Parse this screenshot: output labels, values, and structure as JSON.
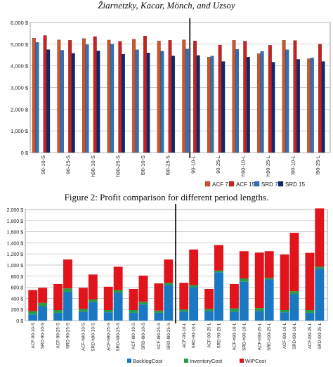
{
  "page": {
    "header": "Žiarnetzky, Kacar, Mönch, and Uzsoy",
    "figure_caption": "Figure 2: Profit comparison for different period lengths."
  },
  "colors": {
    "acf7": "#d0542a",
    "acf15": "#cc1f1f",
    "srd7": "#2a72c2",
    "srd15": "#0a2a6e",
    "backlog": "#1a78c2",
    "inventory": "#2a9a4a",
    "wip": "#e0141a"
  },
  "chart_data": [
    {
      "type": "bar",
      "title": "",
      "xlabel": "",
      "ylabel": "",
      "ylim": [
        0,
        6000
      ],
      "yticks": [
        "0 $",
        "1,000 $",
        "2,000 $",
        "3,000 $",
        "4,000 $",
        "5,000 $",
        "6,000 $"
      ],
      "grid": true,
      "legend": "bottom-right",
      "categories": [
        "90-10-S",
        "90-25-S",
        "h90-10-S",
        "h90-25-S",
        "l90-10-S",
        "l90-25-S",
        "90-10-L",
        "90-25-L",
        "h90-10-L",
        "h90-25-L",
        "l90-10-L",
        "l90-25-L"
      ],
      "series": [
        {
          "name": "ACF 7",
          "values": [
            5280,
            5200,
            5260,
            5190,
            5230,
            5150,
            5200,
            4400,
            5180,
            4560,
            5180,
            4330
          ]
        },
        {
          "name": "ACF 15",
          "values": [
            5400,
            5180,
            5350,
            5130,
            5380,
            5180,
            5150,
            4960,
            5140,
            4950,
            5170,
            5000
          ]
        },
        {
          "name": "SRD 7",
          "values": [
            5080,
            4720,
            4980,
            5000,
            4740,
            4680,
            4780,
            4450,
            4760,
            4670,
            4740,
            4370
          ]
        },
        {
          "name": "SRD 15",
          "values": [
            4750,
            4580,
            4690,
            4540,
            4600,
            4460,
            4480,
            4200,
            4400,
            4170,
            4300,
            4200
          ]
        }
      ]
    },
    {
      "type": "bar",
      "stacked": true,
      "title": "",
      "xlabel": "",
      "ylabel": "",
      "ylim": [
        0,
        2000
      ],
      "yticks": [
        "0 $",
        "200 $",
        "400 $",
        "600 $",
        "800 $",
        "1,000 $",
        "1,200 $",
        "1,400 $",
        "1,600 $",
        "1,800 $",
        "2,000 $"
      ],
      "grid": true,
      "legend": "bottom",
      "categories": [
        "ACF-90-10-S",
        "SRD-90-10-S",
        "ACF-90-25-S",
        "SRD-90-25-S",
        "ACF-h90-10-S",
        "SRD-h90-10-S",
        "ACF-h90-25-S",
        "SRD-h90-25-S",
        "ACF-l90-10-S",
        "SRD-l90-10-S",
        "ACF-l90-25-S",
        "SRD-l90-25-S",
        "ACF-90-10-L",
        "SRD-90-10-L",
        "ACF-90-25-L",
        "SRD-90-25-L",
        "ACF-h90-10-L",
        "SRD-h90-10-L",
        "ACF-h90-25-L",
        "SRD-h90-25-L",
        "ACF-l90-10-L",
        "SRD-l90-10-L",
        "ACF-l90-25-L",
        "SRD-l90-25-L"
      ],
      "series": [
        {
          "name": "BacklogCost",
          "values": [
            110,
            260,
            140,
            520,
            160,
            330,
            150,
            500,
            140,
            290,
            140,
            640,
            160,
            600,
            170,
            870,
            160,
            700,
            175,
            740,
            150,
            480,
            140,
            930
          ]
        },
        {
          "name": "InventoryCost",
          "values": [
            60,
            60,
            50,
            60,
            50,
            50,
            40,
            50,
            50,
            50,
            40,
            40,
            40,
            40,
            40,
            30,
            60,
            60,
            50,
            30,
            40,
            50,
            50,
            40
          ]
        },
        {
          "name": "WIPCost",
          "values": [
            380,
            270,
            470,
            520,
            380,
            450,
            420,
            420,
            380,
            470,
            490,
            420,
            480,
            640,
            360,
            460,
            440,
            490,
            1000,
            480,
            1000,
            1050,
            1030,
            1050
          ]
        }
      ]
    }
  ]
}
